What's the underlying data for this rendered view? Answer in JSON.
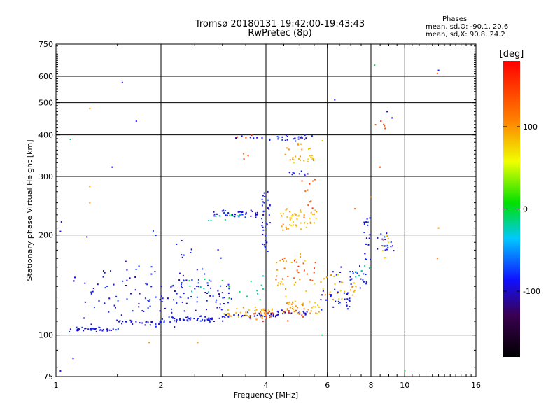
{
  "header": {
    "title_line1": "Tromsø 20180131 19:42:00-19:43:43",
    "title_line2": "RwPretec (8p)"
  },
  "legend": {
    "heading": "Phases",
    "line_o": "mean, sd,O: -90.1, 20.6",
    "line_x": "mean, sd,X:  90.8, 24.2"
  },
  "chart_data": {
    "type": "scatter",
    "xlabel": "Frequency [MHz]",
    "ylabel": "Stationary phase Virtual Height [km]",
    "x_scale": "log",
    "y_scale": "log",
    "xlim": [
      1,
      16
    ],
    "ylim": [
      75,
      750
    ],
    "x_ticks": [
      {
        "v": 1,
        "label": "1"
      },
      {
        "v": 2,
        "label": "2"
      },
      {
        "v": 4,
        "label": "4"
      },
      {
        "v": 6,
        "label": "6"
      },
      {
        "v": 8,
        "label": "8"
      },
      {
        "v": 10,
        "label": "10"
      },
      {
        "v": 16,
        "label": "16"
      }
    ],
    "x_grid": [
      2,
      4,
      6,
      8,
      10
    ],
    "y_ticks": [
      {
        "v": 75,
        "label": "75"
      },
      {
        "v": 100,
        "label": "100"
      },
      {
        "v": 200,
        "label": "200"
      },
      {
        "v": 300,
        "label": "300"
      },
      {
        "v": 400,
        "label": "400"
      },
      {
        "v": 500,
        "label": "500"
      },
      {
        "v": 600,
        "label": "600"
      },
      {
        "v": 750,
        "label": "750"
      }
    ],
    "y_grid": [
      100,
      200,
      300,
      400,
      500,
      600
    ],
    "grid": true,
    "colorbar": {
      "title": "[deg]",
      "range": [
        -180,
        180
      ],
      "ticks": [
        {
          "v": 100,
          "label": "100"
        },
        {
          "v": 0,
          "label": "0"
        },
        {
          "v": -100,
          "label": "-100"
        }
      ]
    },
    "series": [
      {
        "phase_deg": -90,
        "segments": [
          {
            "f0": 1.06,
            "f1": 1.5,
            "h0": 103,
            "h1": 105,
            "n": 40,
            "jitter": 0.012
          },
          {
            "f0": 1.5,
            "f1": 2.0,
            "h0": 108,
            "h1": 110,
            "n": 30,
            "jitter": 0.012
          },
          {
            "f0": 2.0,
            "f1": 3.0,
            "h0": 110,
            "h1": 113,
            "n": 45,
            "jitter": 0.01
          },
          {
            "f0": 3.0,
            "f1": 4.3,
            "h0": 113,
            "h1": 116,
            "n": 40,
            "jitter": 0.01
          },
          {
            "f0": 4.3,
            "f1": 5.3,
            "h0": 116,
            "h1": 118,
            "n": 18,
            "jitter": 0.01
          },
          {
            "f0": 1.2,
            "f1": 3.2,
            "h0": 112,
            "h1": 150,
            "n": 120,
            "jitter": 0.08
          },
          {
            "f0": 2.2,
            "f1": 3.0,
            "h0": 130,
            "h1": 190,
            "n": 25,
            "jitter": 0.06
          },
          {
            "f0": 2.8,
            "f1": 3.8,
            "h0": 228,
            "h1": 236,
            "n": 40,
            "jitter": 0.012
          },
          {
            "f0": 3.25,
            "f1": 5.6,
            "h0": 385,
            "h1": 398,
            "n": 30,
            "jitter": 0.008
          },
          {
            "f0": 4.5,
            "f1": 5.3,
            "h0": 303,
            "h1": 310,
            "n": 10,
            "jitter": 0.008
          },
          {
            "f0": 3.9,
            "f1": 4.1,
            "h0": 180,
            "h1": 270,
            "n": 35,
            "jitter": 0.01
          },
          {
            "f0": 5.7,
            "f1": 7.0,
            "h0": 120,
            "h1": 135,
            "n": 30,
            "jitter": 0.03
          },
          {
            "f0": 6.2,
            "f1": 7.8,
            "h0": 140,
            "h1": 160,
            "n": 25,
            "jitter": 0.03
          },
          {
            "f0": 7.6,
            "f1": 8.0,
            "h0": 165,
            "h1": 225,
            "n": 18,
            "jitter": 0.02
          },
          {
            "f0": 8.3,
            "f1": 9.3,
            "h0": 175,
            "h1": 200,
            "n": 20,
            "jitter": 0.03
          },
          {
            "f0": 1.0,
            "f1": 2.0,
            "h0": 130,
            "h1": 210,
            "n": 10,
            "jitter": 0.15
          }
        ]
      },
      {
        "phase_deg": -15,
        "segments": [
          {
            "f0": 2.4,
            "f1": 4.0,
            "h0": 130,
            "h1": 145,
            "n": 20,
            "jitter": 0.06
          },
          {
            "f0": 2.7,
            "f1": 3.5,
            "h0": 220,
            "h1": 232,
            "n": 10,
            "jitter": 0.02
          },
          {
            "f0": 7.0,
            "f1": 8.0,
            "h0": 150,
            "h1": 165,
            "n": 6,
            "jitter": 0.03
          }
        ]
      },
      {
        "phase_deg": 90,
        "segments": [
          {
            "f0": 3.0,
            "f1": 4.2,
            "h0": 114,
            "h1": 120,
            "n": 40,
            "jitter": 0.03
          },
          {
            "f0": 4.4,
            "f1": 5.7,
            "h0": 118,
            "h1": 125,
            "n": 40,
            "jitter": 0.03
          },
          {
            "f0": 4.4,
            "f1": 5.6,
            "h0": 212,
            "h1": 232,
            "n": 50,
            "jitter": 0.04
          },
          {
            "f0": 4.5,
            "f1": 5.5,
            "h0": 335,
            "h1": 345,
            "n": 20,
            "jitter": 0.02
          },
          {
            "f0": 5.8,
            "f1": 7.3,
            "h0": 128,
            "h1": 148,
            "n": 25,
            "jitter": 0.04
          },
          {
            "f0": 4.2,
            "f1": 6.0,
            "h0": 135,
            "h1": 175,
            "n": 25,
            "jitter": 0.06
          },
          {
            "f0": 4.5,
            "f1": 5.8,
            "h0": 365,
            "h1": 380,
            "n": 10,
            "jitter": 0.02
          },
          {
            "f0": 8.6,
            "f1": 9.0,
            "h0": 175,
            "h1": 200,
            "n": 8,
            "jitter": 0.03
          }
        ]
      },
      {
        "phase_deg": 140,
        "segments": [
          {
            "f0": 3.6,
            "f1": 5.2,
            "h0": 112,
            "h1": 118,
            "n": 25,
            "jitter": 0.03
          },
          {
            "f0": 4.2,
            "f1": 5.6,
            "h0": 150,
            "h1": 170,
            "n": 20,
            "jitter": 0.05
          },
          {
            "f0": 4.8,
            "f1": 5.6,
            "h0": 240,
            "h1": 290,
            "n": 10,
            "jitter": 0.04
          },
          {
            "f0": 8.2,
            "f1": 9.0,
            "h0": 420,
            "h1": 450,
            "n": 4,
            "jitter": 0.02
          },
          {
            "f0": 3.3,
            "f1": 4.0,
            "h0": 330,
            "h1": 395,
            "n": 6,
            "jitter": 0.03
          }
        ]
      }
    ],
    "isolated_points": [
      {
        "f": 1.55,
        "h": 575,
        "phase": -90
      },
      {
        "f": 8.9,
        "h": 470,
        "phase": -90
      },
      {
        "f": 12.5,
        "h": 625,
        "phase": -90
      },
      {
        "f": 12.4,
        "h": 612,
        "phase": 140
      },
      {
        "f": 8.2,
        "h": 648,
        "phase": -10
      },
      {
        "f": 6.3,
        "h": 510,
        "phase": -90
      },
      {
        "f": 10.0,
        "h": 78,
        "phase": -10
      },
      {
        "f": 1.03,
        "h": 78,
        "phase": -90
      },
      {
        "f": 1.1,
        "h": 388,
        "phase": -10
      },
      {
        "f": 1.25,
        "h": 480,
        "phase": 100
      },
      {
        "f": 1.7,
        "h": 440,
        "phase": -90
      },
      {
        "f": 1.45,
        "h": 320,
        "phase": -90
      },
      {
        "f": 1.25,
        "h": 280,
        "phase": 100
      },
      {
        "f": 1.25,
        "h": 250,
        "phase": 100
      },
      {
        "f": 1.03,
        "h": 205,
        "phase": -90
      },
      {
        "f": 1.85,
        "h": 95,
        "phase": 100
      },
      {
        "f": 2.55,
        "h": 95,
        "phase": 100
      },
      {
        "f": 1.12,
        "h": 85,
        "phase": -90
      },
      {
        "f": 5.8,
        "h": 100,
        "phase": -10
      },
      {
        "f": 12.5,
        "h": 210,
        "phase": 100
      },
      {
        "f": 12.4,
        "h": 170,
        "phase": 120
      },
      {
        "f": 8.5,
        "h": 320,
        "phase": 140
      },
      {
        "f": 8.0,
        "h": 260,
        "phase": 100
      },
      {
        "f": 7.2,
        "h": 240,
        "phase": 120
      },
      {
        "f": 9.2,
        "h": 450,
        "phase": -90
      },
      {
        "f": 8.7,
        "h": 430,
        "phase": 140
      }
    ]
  }
}
